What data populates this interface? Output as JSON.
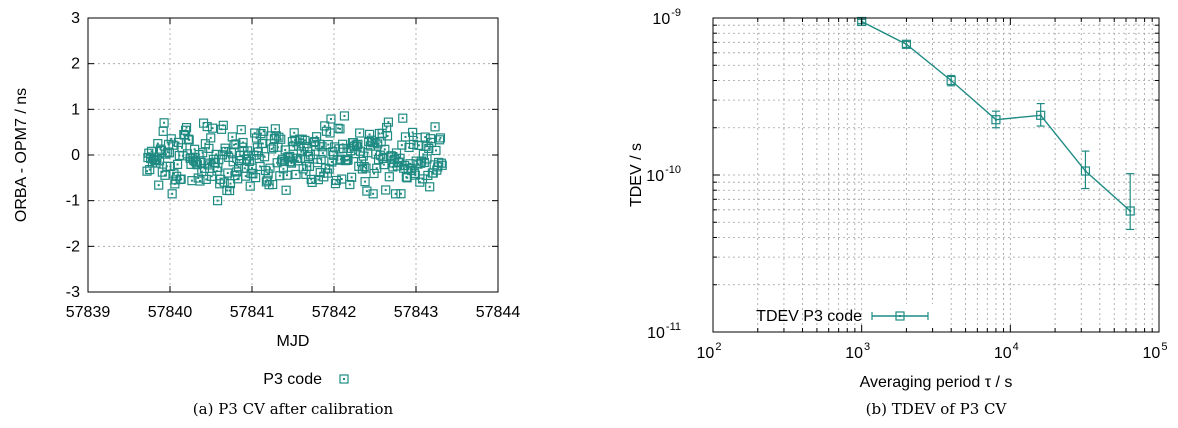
{
  "colors": {
    "series": "#1f8b83",
    "axis": "#000000",
    "grid": "#a0a0a0",
    "background": "#ffffff"
  },
  "chart_data": [
    {
      "type": "scatter",
      "title": "",
      "caption": "(a) P3 CV after calibration",
      "xlabel": "MJD",
      "ylabel": "ORBA - OPM7 / ns",
      "xlim": [
        57839,
        57844
      ],
      "ylim": [
        -3,
        3
      ],
      "xticks": [
        "57839",
        "57840",
        "57841",
        "57842",
        "57843",
        "57844"
      ],
      "yticks": [
        "-3",
        "-2",
        "-1",
        "0",
        "1",
        "2",
        "3"
      ],
      "grid": true,
      "legend_position": "bottom-center",
      "series": [
        {
          "name": "P3 code",
          "marker": "square-with-dot"
        }
      ]
    },
    {
      "type": "line",
      "title": "",
      "caption": "(b) TDEV of P3 CV",
      "xlabel": "Averaging period τ / s",
      "ylabel": "TDEV / s",
      "xscale": "log",
      "yscale": "log",
      "xlim": [
        100,
        100000
      ],
      "ylim": [
        1e-11,
        1e-09
      ],
      "xtick_bases": [
        "10",
        "10",
        "10",
        "10"
      ],
      "xtick_exponents": [
        "2",
        "3",
        "4",
        "5"
      ],
      "ytick_bases": [
        "10",
        "10",
        "10"
      ],
      "ytick_exponents": [
        "-11",
        "-10",
        "-9"
      ],
      "grid": true,
      "legend_position": "bottom-left",
      "series": [
        {
          "name": "TDEV P3 code",
          "marker": "square-with-dot",
          "x": [
            1000,
            2000,
            4000,
            8000,
            16000,
            32000,
            64000
          ],
          "y": [
            9.5e-10,
            6.8e-10,
            4e-10,
            2.25e-10,
            2.4e-10,
            1.06e-10,
            5.9e-11
          ],
          "err_low": [
            9.2e-10,
            6.5e-10,
            3.7e-10,
            2e-10,
            2.05e-10,
            8.2e-11,
            4.5e-11
          ],
          "err_high": [
            9.8e-10,
            7.1e-10,
            4.3e-10,
            2.55e-10,
            2.85e-10,
            1.42e-10,
            1.02e-10
          ]
        }
      ]
    }
  ]
}
